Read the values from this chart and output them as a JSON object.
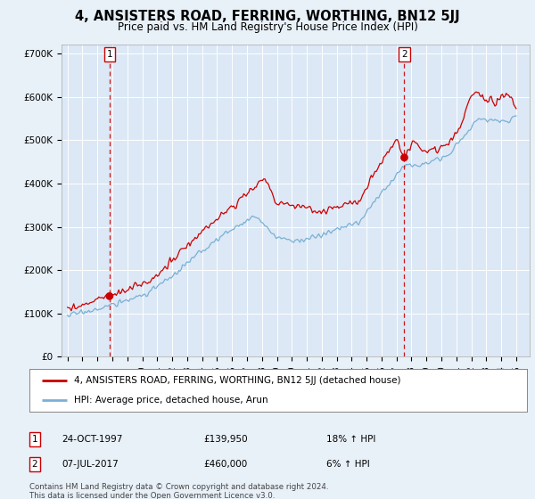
{
  "title": "4, ANSISTERS ROAD, FERRING, WORTHING, BN12 5JJ",
  "subtitle": "Price paid vs. HM Land Registry's House Price Index (HPI)",
  "background_color": "#e8f0f8",
  "plot_bg_color": "#dce8f5",
  "ylim": [
    0,
    720000
  ],
  "yticks": [
    0,
    100000,
    200000,
    300000,
    400000,
    500000,
    600000,
    700000
  ],
  "ytick_labels": [
    "£0",
    "£100K",
    "£200K",
    "£300K",
    "£400K",
    "£500K",
    "£600K",
    "£700K"
  ],
  "sale1_date_x": 1997.81,
  "sale1_price": 139950,
  "sale1_label": "1",
  "sale2_date_x": 2017.52,
  "sale2_price": 460000,
  "sale2_label": "2",
  "legend_line1": "4, ANSISTERS ROAD, FERRING, WORTHING, BN12 5JJ (detached house)",
  "legend_line2": "HPI: Average price, detached house, Arun",
  "line_color_red": "#cc0000",
  "line_color_blue": "#7ab0d4",
  "footer": "Contains HM Land Registry data © Crown copyright and database right 2024.\nThis data is licensed under the Open Government Licence v3.0.",
  "grid_color": "#ffffff",
  "vline_color": "#cc0000",
  "xlim_left": 1994.6,
  "xlim_right": 2025.9
}
